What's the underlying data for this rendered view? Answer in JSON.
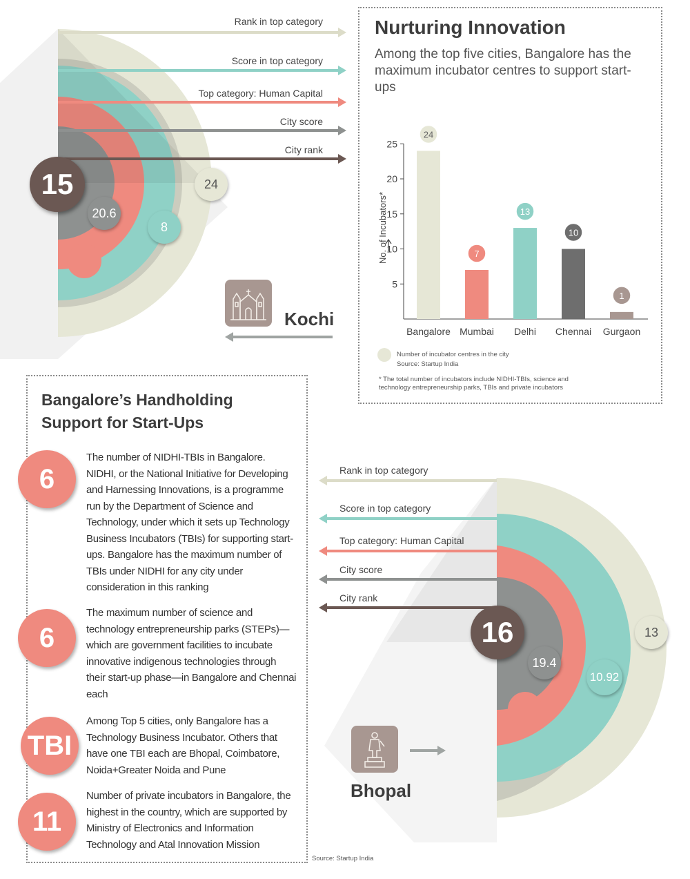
{
  "colors": {
    "cream": "#e6e7d6",
    "teal": "#8fd1c6",
    "salmon": "#ef8a7f",
    "grey": "#8e9190",
    "dark_grey": "#6e6e6e",
    "brown": "#6b5853",
    "arrow_cream": "#dcdcc8"
  },
  "kochi": {
    "city_name": "Kochi",
    "rank": "15",
    "city_score": "20.6",
    "top_category_score": "8",
    "rank_top_category": "24",
    "legend": {
      "rank_top": "Rank in top category",
      "score_top": "Score in top category",
      "top_category": "Top category: Human Capital",
      "city_score": "City score",
      "city_rank": "City rank"
    },
    "icon": "church-icon"
  },
  "bhopal": {
    "city_name": "Bhopal",
    "rank": "16",
    "city_score": "19.4",
    "top_category_score": "10.92",
    "rank_top_category": "13",
    "legend": {
      "rank_top": "Rank in top category",
      "score_top": "Score in top category",
      "top_category": "Top category: Human Capital",
      "city_score": "City score",
      "city_rank": "City rank"
    },
    "icon": "statue-icon"
  },
  "nurturing": {
    "title": "Nurturing Innovation",
    "subtitle": "Among the top five cities, Bangalore has the maximum incubator centres to support start-ups",
    "legend_text": "Number of incubator centres in the city",
    "source": "Source: Startup India",
    "footnote": "* The total number of incubators include NIDHI-TBIs, science and technology entrepreneurship parks, TBIs and private incubators"
  },
  "chart_data": {
    "type": "bar",
    "categories": [
      "Bangalore",
      "Mumbai",
      "Delhi",
      "Chennai",
      "Gurgaon"
    ],
    "values": [
      24,
      7,
      13,
      10,
      1
    ],
    "value_labels": [
      "24",
      "7",
      "13",
      "10",
      "1"
    ],
    "colors": [
      "#e6e7d6",
      "#ef8a7f",
      "#8fd1c6",
      "#6e6e6e",
      "#a89791"
    ],
    "ylabel": "No. of Incubators*",
    "y_ticks": [
      5,
      10,
      15,
      20,
      25
    ],
    "y_tick_labels": [
      "5",
      "10",
      "15",
      "20",
      "25"
    ],
    "ylim": [
      0,
      27
    ],
    "grid": false,
    "legend_position": "bottom-left"
  },
  "handholding": {
    "title_line1": "Bangalore’s Handholding",
    "title_line2": "Support for Start-Ups",
    "points": [
      {
        "badge": "6",
        "text": "The number of NIDHI-TBIs in Bangalore. NIDHI, or the National Initiative for Developing and Harnessing Innovations, is a programme run by the Department of Science and Technology, under which it sets up Technology Business Incubators (TBIs) for supporting start-ups. Bangalore has the maximum number of TBIs under NIDHI for any city under consideration in this ranking"
      },
      {
        "badge": "6",
        "text": "The maximum number of science and technology entrepreneurship parks (STEPs)—which are government facilities to incubate innovative indigenous technologies through their start-up phase—in Bangalore and Chennai each"
      },
      {
        "badge": "TBI",
        "text": "Among Top 5 cities, only Bangalore has a Technology Business Incubator. Others that have one TBI each are Bhopal, Coimbatore, Noida+Greater Noida and Pune"
      },
      {
        "badge": "11",
        "text": "Number of private incubators in Bangalore, the highest in the country, which are supported by Ministry of Electronics and Information Technology and Atal Innovation Mission"
      }
    ],
    "source": "Source: Startup India"
  }
}
